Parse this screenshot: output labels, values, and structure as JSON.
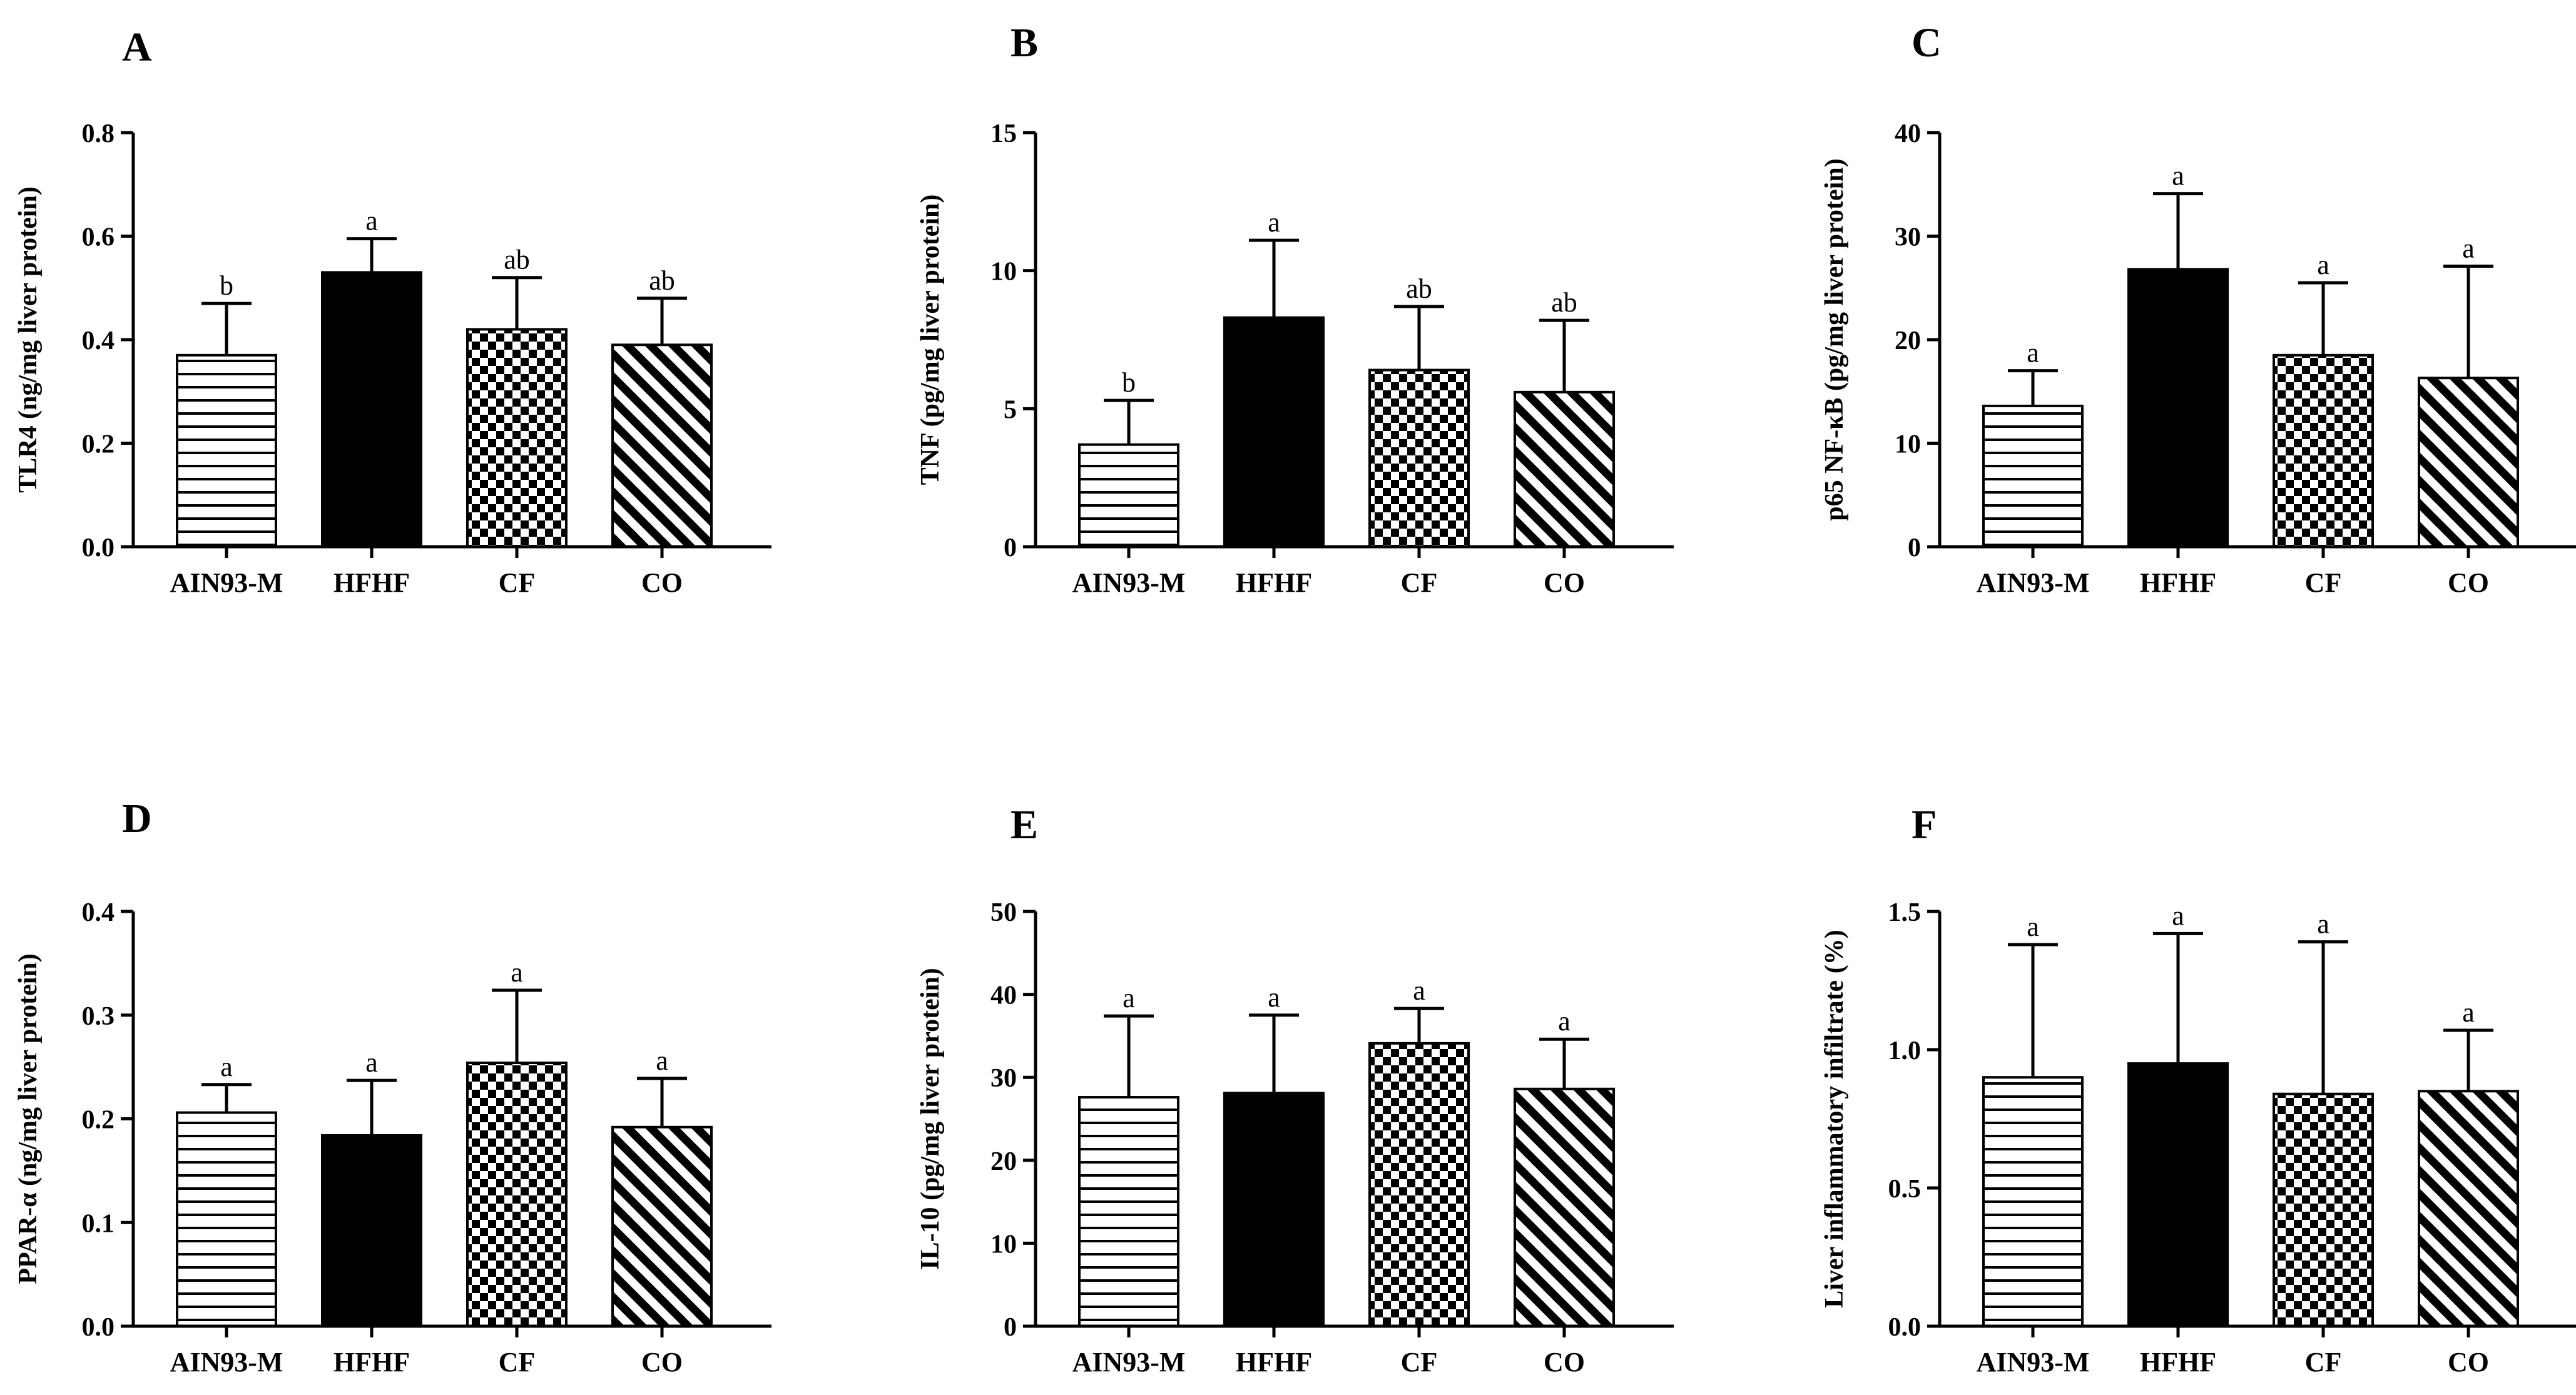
{
  "colors": {
    "ink": "#000000",
    "background": "#ffffff"
  },
  "bar_patterns": [
    "horizontal-lines",
    "solid-black",
    "checkerboard",
    "diagonal-lines"
  ],
  "chart_data": [
    {
      "panel": "A",
      "type": "bar",
      "categories": [
        "AIN93-M",
        "HFHF",
        "CF",
        "CO"
      ],
      "values": [
        0.37,
        0.53,
        0.42,
        0.39
      ],
      "errors": [
        0.1,
        0.065,
        0.1,
        0.09
      ],
      "labels": [
        "b",
        "a",
        "ab",
        "ab"
      ],
      "ylabel": "TLR4 (ng/mg liver protein)",
      "ylim": [
        0,
        0.8
      ],
      "yticks": [
        "0.0",
        "0.2",
        "0.4",
        "0.6",
        "0.8"
      ]
    },
    {
      "panel": "B",
      "type": "bar",
      "categories": [
        "AIN93-M",
        "HFHF",
        "CF",
        "CO"
      ],
      "values": [
        3.7,
        8.3,
        6.4,
        5.6
      ],
      "errors": [
        1.6,
        2.8,
        2.3,
        2.6
      ],
      "labels": [
        "b",
        "a",
        "ab",
        "ab"
      ],
      "ylabel": "TNF (pg/mg liver protein)",
      "ylim": [
        0,
        15
      ],
      "yticks": [
        "0",
        "5",
        "10",
        "15"
      ]
    },
    {
      "panel": "C",
      "type": "bar",
      "categories": [
        "AIN93-M",
        "HFHF",
        "CF",
        "CO"
      ],
      "values": [
        13.6,
        26.8,
        18.5,
        16.3
      ],
      "errors": [
        3.4,
        7.3,
        7.0,
        10.8
      ],
      "labels": [
        "a",
        "a",
        "a",
        "a"
      ],
      "ylabel": "p65 NF-κB (pg/mg liver protein)",
      "ylim": [
        0,
        40
      ],
      "yticks": [
        "0",
        "10",
        "20",
        "30",
        "40"
      ]
    },
    {
      "panel": "D",
      "type": "bar",
      "categories": [
        "AIN93-M",
        "HFHF",
        "CF",
        "CO"
      ],
      "values": [
        0.206,
        0.184,
        0.254,
        0.192
      ],
      "errors": [
        0.027,
        0.053,
        0.07,
        0.047
      ],
      "labels": [
        "a",
        "a",
        "a",
        "a"
      ],
      "ylabel": "PPAR-α (ng/mg liver protein)",
      "ylim": [
        0,
        0.4
      ],
      "yticks": [
        "0.0",
        "0.1",
        "0.2",
        "0.3",
        "0.4"
      ]
    },
    {
      "panel": "E",
      "type": "bar",
      "categories": [
        "AIN93-M",
        "HFHF",
        "CF",
        "CO"
      ],
      "values": [
        27.6,
        28.1,
        34.1,
        28.6
      ],
      "errors": [
        9.8,
        9.4,
        4.2,
        6.0
      ],
      "labels": [
        "a",
        "a",
        "a",
        "a"
      ],
      "ylabel": "IL-10 (pg/mg liver protein)",
      "ylim": [
        0,
        50
      ],
      "yticks": [
        "0",
        "10",
        "20",
        "30",
        "40",
        "50"
      ]
    },
    {
      "panel": "F",
      "type": "bar",
      "categories": [
        "AIN93-M",
        "HFHF",
        "CF",
        "CO"
      ],
      "values": [
        0.9,
        0.95,
        0.84,
        0.85
      ],
      "errors": [
        0.48,
        0.47,
        0.55,
        0.22
      ],
      "labels": [
        "a",
        "a",
        "a",
        "a"
      ],
      "ylabel": "Liver inflammatory infiltrate (%)",
      "ylim": [
        0,
        1.5
      ],
      "yticks": [
        "0.0",
        "0.5",
        "1.0",
        "1.5"
      ]
    }
  ]
}
